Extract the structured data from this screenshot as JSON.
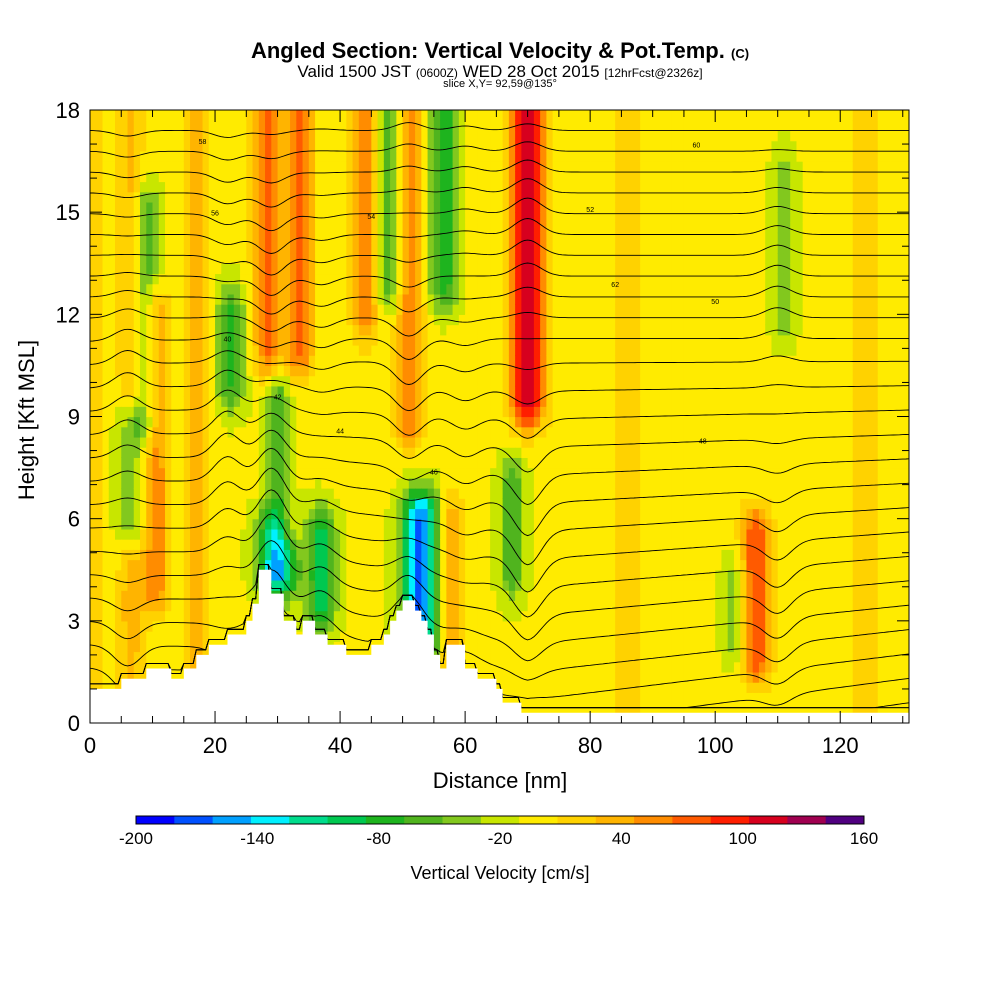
{
  "title": {
    "main": "Angled Section: Vertical Velocity & Pot.Temp.",
    "main_units": "(C)",
    "valid_prefix": "Valid 1500 JST",
    "valid_utc": "(0600Z)",
    "valid_date": "WED 28 Oct 2015",
    "forecast": "[12hrFcst@2326z]",
    "slice": "slice X,Y= 92,59@135°"
  },
  "chart_data": {
    "type": "heatmap",
    "xlabel": "Distance [nm]",
    "ylabel": "Height [Kft MSL]",
    "xlim": [
      0,
      131
    ],
    "ylim": [
      0,
      18
    ],
    "xticks": [
      0,
      20,
      40,
      60,
      80,
      100,
      120
    ],
    "yticks": [
      0,
      3,
      6,
      9,
      12,
      15,
      18
    ],
    "colorbar": {
      "label": "Vertical Velocity [cm/s]",
      "range": [
        -200,
        160
      ],
      "step": 20,
      "tick_values": [
        -200,
        -140,
        -80,
        -20,
        40,
        100,
        160
      ],
      "tick_labels": [
        "-200",
        "-140",
        "-80",
        "-20",
        "40",
        "100",
        "160"
      ],
      "colors": [
        "#0000ff",
        "#0050ff",
        "#00a0ff",
        "#00f0ff",
        "#00dc8c",
        "#00c850",
        "#1eb41e",
        "#50b41e",
        "#82c81e",
        "#c8e600",
        "#ffeb00",
        "#ffd200",
        "#ffb400",
        "#ff8c00",
        "#ff5a00",
        "#ff1e00",
        "#d7001e",
        "#a00050",
        "#500080"
      ]
    },
    "background_value": 5,
    "updrafts": [
      {
        "x": 0.8,
        "y0": 0,
        "y1": 18,
        "peak": 30
      },
      {
        "x": 6.5,
        "y0": 0,
        "y1": 18,
        "peak": 45
      },
      {
        "x": 10.5,
        "y0": 4,
        "y1": 12,
        "peak": 70
      },
      {
        "x": 17,
        "y0": 0,
        "y1": 18,
        "peak": 40
      },
      {
        "x": 28.5,
        "y0": 7,
        "y1": 18,
        "peak": 85
      },
      {
        "x": 33.5,
        "y0": 11,
        "y1": 18,
        "peak": 80
      },
      {
        "x": 31.5,
        "y0": 6,
        "y1": 9.5,
        "peak": 80
      },
      {
        "x": 44,
        "y0": 12,
        "y1": 18,
        "peak": 70
      },
      {
        "x": 51,
        "y0": 9,
        "y1": 18,
        "peak": 75
      },
      {
        "x": 57.5,
        "y0": 1.5,
        "y1": 6,
        "peak": 60
      },
      {
        "x": 70,
        "y0": 9.5,
        "y1": 18,
        "peak": 135
      },
      {
        "x": 86,
        "y0": 0,
        "y1": 18,
        "peak": 30
      },
      {
        "x": 106.5,
        "y0": 2,
        "y1": 5.5,
        "peak": 95
      },
      {
        "x": 124,
        "y0": 0,
        "y1": 18,
        "peak": 30
      }
    ],
    "downdrafts": [
      {
        "x": 6.5,
        "y0": 6,
        "y1": 8.5,
        "peak": -80
      },
      {
        "x": 9,
        "y0": 9,
        "y1": 15,
        "peak": -60
      },
      {
        "x": 22.5,
        "y0": 10,
        "y1": 12,
        "peak": -70
      },
      {
        "x": 30,
        "y0": 4.5,
        "y1": 9.5,
        "peak": -165
      },
      {
        "x": 37,
        "y0": 3.5,
        "y1": 5.5,
        "peak": -90
      },
      {
        "x": 48,
        "y0": 13,
        "y1": 18,
        "peak": -70
      },
      {
        "x": 53,
        "y0": 2.5,
        "y1": 6,
        "peak": -170
      },
      {
        "x": 56.5,
        "y0": 13,
        "y1": 18,
        "peak": -80
      },
      {
        "x": 67.5,
        "y0": 4.5,
        "y1": 7,
        "peak": -60
      },
      {
        "x": 103,
        "y0": 2.5,
        "y1": 4,
        "peak": -40
      },
      {
        "x": 111,
        "y0": 12,
        "y1": 16,
        "peak": -40
      }
    ],
    "isotherm_count": 28,
    "isotherm_labels": [
      "40",
      "42",
      "44",
      "46",
      "48",
      "50",
      "52",
      "54",
      "56",
      "58",
      "60",
      "62"
    ],
    "terrain": [
      [
        0,
        1
      ],
      [
        5,
        1
      ],
      [
        5,
        1.3
      ],
      [
        9,
        1.3
      ],
      [
        9,
        1.6
      ],
      [
        13,
        1.6
      ],
      [
        13,
        1.3
      ],
      [
        15,
        1.3
      ],
      [
        15,
        1.6
      ],
      [
        17,
        1.6
      ],
      [
        17,
        2
      ],
      [
        19,
        2
      ],
      [
        19,
        2.3
      ],
      [
        22,
        2.3
      ],
      [
        22,
        2.6
      ],
      [
        25,
        2.6
      ],
      [
        25,
        3
      ],
      [
        26,
        3
      ],
      [
        26,
        3.5
      ],
      [
        27,
        3.5
      ],
      [
        27,
        4.5
      ],
      [
        29,
        4.5
      ],
      [
        29,
        3.8
      ],
      [
        31,
        3.8
      ],
      [
        31,
        3
      ],
      [
        33,
        3
      ],
      [
        33,
        2.6
      ],
      [
        34,
        2.6
      ],
      [
        34,
        3
      ],
      [
        36,
        3
      ],
      [
        36,
        2.6
      ],
      [
        38,
        2.6
      ],
      [
        38,
        2.3
      ],
      [
        41,
        2.3
      ],
      [
        41,
        2
      ],
      [
        45,
        2
      ],
      [
        45,
        2.3
      ],
      [
        47,
        2.3
      ],
      [
        47,
        2.6
      ],
      [
        48,
        2.6
      ],
      [
        48,
        3
      ],
      [
        49,
        3
      ],
      [
        49,
        3.3
      ],
      [
        50,
        3.3
      ],
      [
        50,
        3.6
      ],
      [
        52,
        3.6
      ],
      [
        52,
        3.3
      ],
      [
        53,
        3.3
      ],
      [
        53,
        3
      ],
      [
        54,
        3
      ],
      [
        54,
        2.6
      ],
      [
        55,
        2.6
      ],
      [
        55,
        2
      ],
      [
        56,
        2
      ],
      [
        56,
        1.6
      ],
      [
        57,
        1.6
      ],
      [
        57,
        2.3
      ],
      [
        60,
        2.3
      ],
      [
        60,
        1.6
      ],
      [
        62,
        1.6
      ],
      [
        62,
        1.3
      ],
      [
        65,
        1.3
      ],
      [
        65,
        1
      ],
      [
        66,
        1
      ],
      [
        66,
        0.6
      ],
      [
        69,
        0.6
      ],
      [
        69,
        0.3
      ],
      [
        131,
        0.3
      ]
    ]
  }
}
